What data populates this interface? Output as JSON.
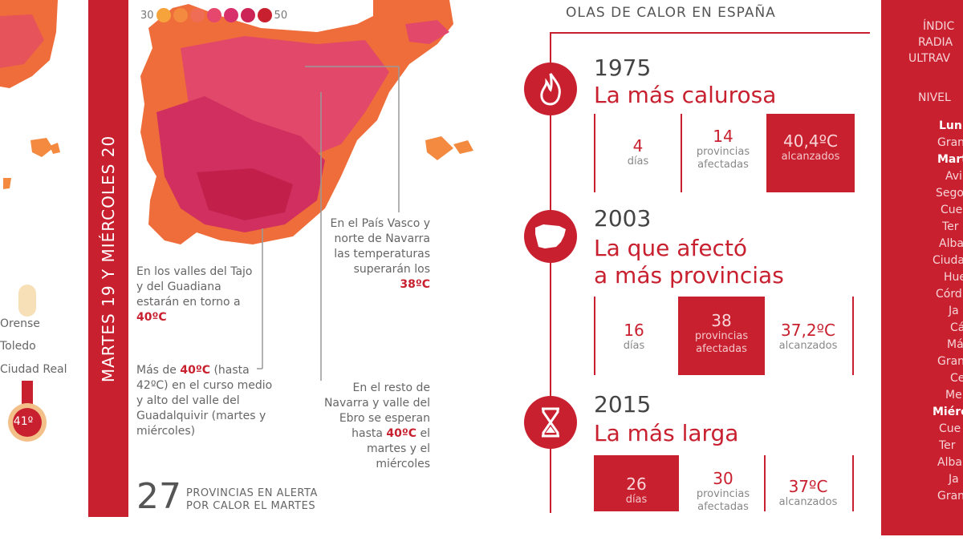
{
  "legend": {
    "min": "30",
    "max": "50",
    "colors": [
      "#f6a33b",
      "#f38a3f",
      "#ef6d54",
      "#e6476d",
      "#d8306b",
      "#cc2456",
      "#c8202f"
    ]
  },
  "banner": {
    "text": "MARTES 19 Y MIÉRCOLES 20"
  },
  "left_cities": [
    "Orense",
    "Toledo",
    "Ciudad Real"
  ],
  "left_thermo_value": "41º",
  "notes": {
    "tajo": {
      "pre": "En los valles del Tajo y del Guadiana estarán en torno a ",
      "hl": "40ºC"
    },
    "guadalquivir": {
      "pre": "Más de ",
      "hl": "40ºC",
      "post": " (hasta 42ºC) en el curso medio y alto del valle del Guadalquivir (martes y miércoles)"
    },
    "pais_vasco": {
      "pre": "En el País Vasco y norte de Navarra las temperaturas superarán los ",
      "hl": "38ºC"
    },
    "navarra": {
      "pre": "En el resto de Navarra y valle del Ebro se esperan hasta ",
      "hl": "40ºC",
      "post": " el martes y el miércoles"
    }
  },
  "alert": {
    "number": "27",
    "line1": "PROVINCIAS EN ALERTA",
    "line2": "POR CALOR EL MARTES"
  },
  "olas": {
    "title": "OLAS DE CALOR EN ESPAÑA",
    "items": [
      {
        "icon": "flame-icon",
        "year": "1975",
        "headline": [
          "La más calurosa"
        ],
        "stats": [
          {
            "big": "4",
            "small": "días",
            "filled": false
          },
          {
            "big": "14",
            "small": "provincias afectadas",
            "filled": false
          },
          {
            "big": "40,4ºC",
            "small": "alcanzados",
            "filled": true
          }
        ]
      },
      {
        "icon": "spain-map-icon",
        "year": "2003",
        "headline": [
          "La que afectó",
          "a más provincias"
        ],
        "stats": [
          {
            "big": "16",
            "small": "días",
            "filled": false
          },
          {
            "big": "38",
            "small": "provincias afectadas",
            "filled": true
          },
          {
            "big": "37,2ºC",
            "small": "alcanzados",
            "filled": false
          }
        ]
      },
      {
        "icon": "hourglass-icon",
        "year": "2015",
        "headline": [
          "La más larga"
        ],
        "stats": [
          {
            "big": "26",
            "small": "días",
            "filled": true
          },
          {
            "big": "30",
            "small": "provincias afectadas",
            "filled": false
          },
          {
            "big": "37ºC",
            "small": "alcanzados",
            "filled": false
          }
        ]
      }
    ]
  },
  "uv": {
    "header": [
      "ÍNDIC",
      "RADIA",
      "ULTRAV"
    ],
    "level": "NIVEL",
    "lines": [
      {
        "t": "Lun",
        "b": true
      },
      {
        "t": "Gran",
        "b": false
      },
      {
        "t": "Mart",
        "b": true
      },
      {
        "t": "Avi",
        "b": false
      },
      {
        "t": "Sego",
        "b": false
      },
      {
        "t": "Cue",
        "b": false
      },
      {
        "t": "Ter",
        "b": false
      },
      {
        "t": "Alba",
        "b": false
      },
      {
        "t": "Ciudad",
        "b": false
      },
      {
        "t": "Hue",
        "b": false
      },
      {
        "t": "Córd",
        "b": false
      },
      {
        "t": "Ja",
        "b": false
      },
      {
        "t": "Cá",
        "b": false
      },
      {
        "t": "Mál",
        "b": false
      },
      {
        "t": "Gran",
        "b": false
      },
      {
        "t": "Ce",
        "b": false
      },
      {
        "t": "Mel",
        "b": false
      },
      {
        "t": "Miérc",
        "b": true
      },
      {
        "t": "Cue",
        "b": false
      },
      {
        "t": "Ter",
        "b": false
      },
      {
        "t": "Alba",
        "b": false
      },
      {
        "t": "Ja",
        "b": false
      },
      {
        "t": "Gran",
        "b": false
      }
    ]
  }
}
